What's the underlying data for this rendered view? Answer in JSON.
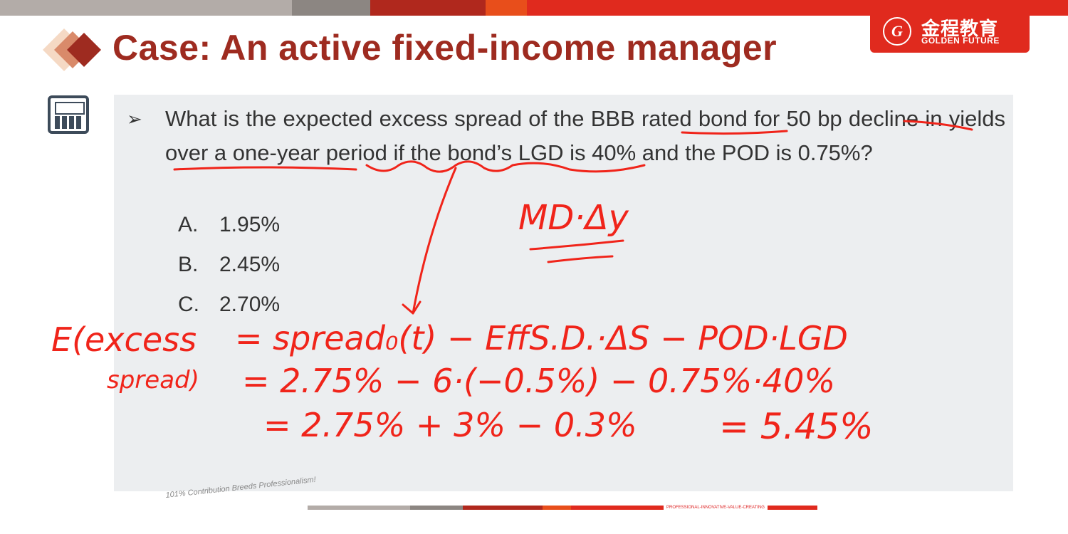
{
  "slide": {
    "title": "Case: An active fixed-income manager",
    "question": "What is the expected excess spread of the BBB rated bond for 50 bp decline in yields over a one-year period if the bond’s LGD is 40% and the POD is 0.75%?",
    "options": [
      {
        "letter": "A.",
        "text": "1.95%"
      },
      {
        "letter": "B.",
        "text": "2.45%"
      },
      {
        "letter": "C.",
        "text": "2.70%"
      }
    ]
  },
  "logo": {
    "chinese": "金程教育",
    "english": "GOLDEN FUTURE",
    "seal": "G"
  },
  "footer": {
    "slogan": "101% Contribution Breeds Professionalism!",
    "tagline": "PROFESSIONAL-INNOVATIVE-VALUE-CREATING"
  },
  "handwriting": {
    "note_top": "MD·Δy",
    "line1_lhs": "E(excess",
    "line1_lhs2": "spread)",
    "line1": "= spread₀(t) − EffS.D.·ΔS − POD·LGD",
    "line2": "= 2.75% − 6·(−0.5%) − 0.75%·40%",
    "line3": "= 2.75% + 3% − 0.3%",
    "result": "= 5.45%"
  },
  "colors": {
    "title": "#9e2b20",
    "accent": "#e02a1e",
    "ink": "#f0241a",
    "panel": "#eceef0"
  }
}
